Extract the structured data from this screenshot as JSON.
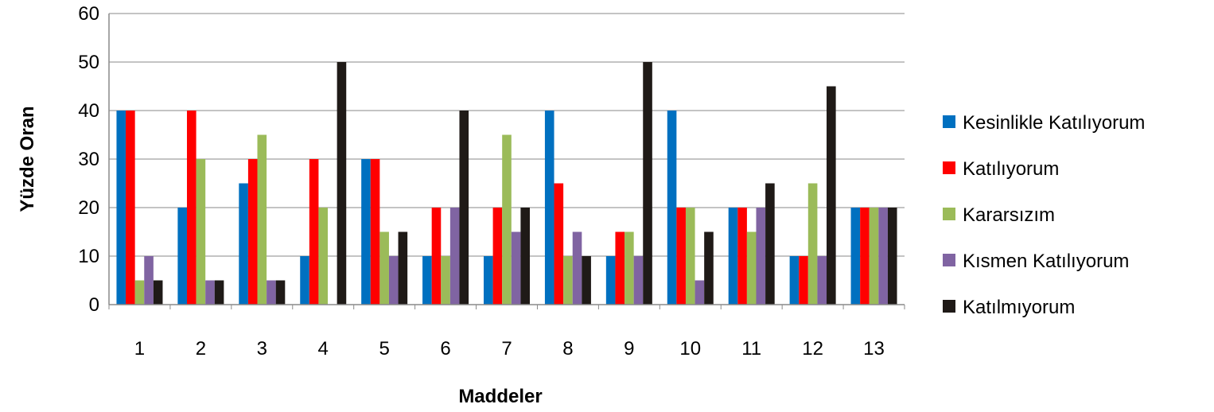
{
  "chart_data": {
    "type": "bar",
    "title": "",
    "xlabel": "Maddeler",
    "ylabel": "Yüzde Oran",
    "ylim": [
      0,
      60
    ],
    "yticks": [
      0,
      10,
      20,
      30,
      40,
      50,
      60
    ],
    "grid": true,
    "legend_position": "right",
    "categories": [
      "1",
      "2",
      "3",
      "4",
      "5",
      "6",
      "7",
      "8",
      "9",
      "10",
      "11",
      "12",
      "13"
    ],
    "series": [
      {
        "name": "Kesinlikle Katılıyorum",
        "color": "#0070C0",
        "values": [
          40,
          20,
          25,
          10,
          30,
          10,
          10,
          40,
          10,
          40,
          20,
          10,
          20
        ]
      },
      {
        "name": "Katılıyorum",
        "color": "#FF0000",
        "values": [
          40,
          40,
          30,
          30,
          30,
          20,
          20,
          25,
          15,
          20,
          20,
          10,
          20
        ]
      },
      {
        "name": "Kararsızım",
        "color": "#9BBB59",
        "values": [
          5,
          30,
          35,
          20,
          15,
          10,
          35,
          10,
          15,
          20,
          15,
          25,
          20
        ]
      },
      {
        "name": "Kısmen Katılıyorum",
        "color": "#8064A2",
        "values": [
          10,
          5,
          5,
          0,
          10,
          20,
          15,
          15,
          10,
          5,
          20,
          10,
          20
        ]
      },
      {
        "name": "Katılmıyorum",
        "color": "#1F1A17",
        "values": [
          5,
          5,
          5,
          50,
          15,
          40,
          20,
          10,
          50,
          15,
          25,
          45,
          20
        ]
      }
    ]
  }
}
